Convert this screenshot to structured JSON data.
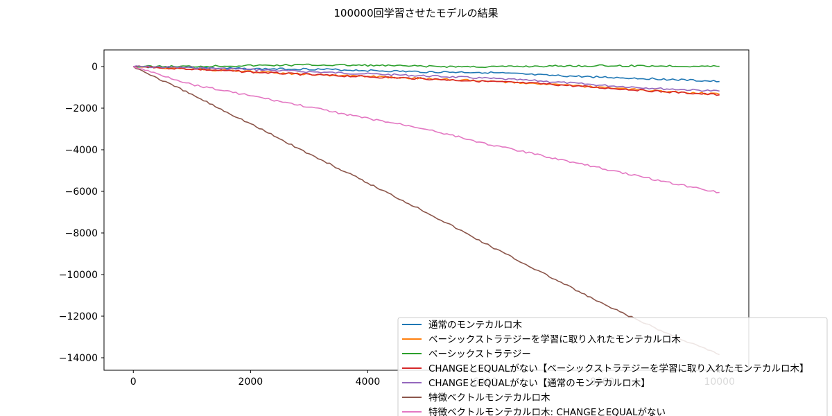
{
  "figure": {
    "title": "100000回学習させたモデルの結果"
  },
  "chart_data": {
    "type": "line",
    "title": "100000回学習させたモデルの結果",
    "xlabel": "",
    "ylabel": "",
    "xlim": [
      -500,
      10500
    ],
    "ylim": [
      -14600,
      800
    ],
    "xticks": [
      0,
      2000,
      4000,
      6000,
      8000,
      10000
    ],
    "yticks": [
      0,
      -2000,
      -4000,
      -6000,
      -8000,
      -10000,
      -12000,
      -14000
    ],
    "xtick_labels": [
      "0",
      "2000",
      "4000",
      "6000",
      "8000",
      "10000"
    ],
    "ytick_labels": [
      "0",
      "−2000",
      "−4000",
      "−6000",
      "−8000",
      "−10000",
      "−12000",
      "−14000"
    ],
    "grid": false,
    "legend_position": "lower right",
    "x": [
      0,
      1000,
      2000,
      3000,
      4000,
      5000,
      6000,
      7000,
      8000,
      9000,
      10000
    ],
    "series": [
      {
        "name": "通常のモンテカルロ木",
        "color": "#1f77b4",
        "values": [
          0,
          -60,
          -110,
          -120,
          -190,
          -260,
          -280,
          -420,
          -510,
          -600,
          -720
        ]
      },
      {
        "name": "ベーシックストラテジーを学習に取り入れたモンテカルロ木",
        "color": "#ff7f0e",
        "values": [
          0,
          -120,
          -250,
          -380,
          -470,
          -580,
          -700,
          -830,
          -1000,
          -1180,
          -1330
        ]
      },
      {
        "name": "ベーシックストラテジー",
        "color": "#2ca02c",
        "values": [
          0,
          10,
          50,
          80,
          60,
          10,
          -10,
          20,
          40,
          30,
          10
        ]
      },
      {
        "name": "CHANGEとEQUALがない【ベーシックストラテジーを学習に取り入れたモンテカルロ木】",
        "color": "#d62728",
        "values": [
          0,
          -120,
          -260,
          -390,
          -490,
          -590,
          -710,
          -830,
          -1020,
          -1200,
          -1360
        ]
      },
      {
        "name": "CHANGEとEQUALがない【通常のモンテカルロ木】",
        "color": "#9467bd",
        "values": [
          0,
          -50,
          -140,
          -250,
          -350,
          -450,
          -560,
          -700,
          -900,
          -1060,
          -1180
        ]
      },
      {
        "name": "特徴ベクトルモンテカルロ木",
        "color": "#8c564b",
        "values": [
          0,
          -1350,
          -2750,
          -4200,
          -5600,
          -7000,
          -8500,
          -9950,
          -11400,
          -12700,
          -13850
        ]
      },
      {
        "name": "特徴ベクトルモンテカルロ木: CHANGEとEQUALがない",
        "color": "#e377c2",
        "values": [
          0,
          -860,
          -1400,
          -1950,
          -2500,
          -3000,
          -3700,
          -4300,
          -4900,
          -5500,
          -6050
        ]
      }
    ]
  }
}
